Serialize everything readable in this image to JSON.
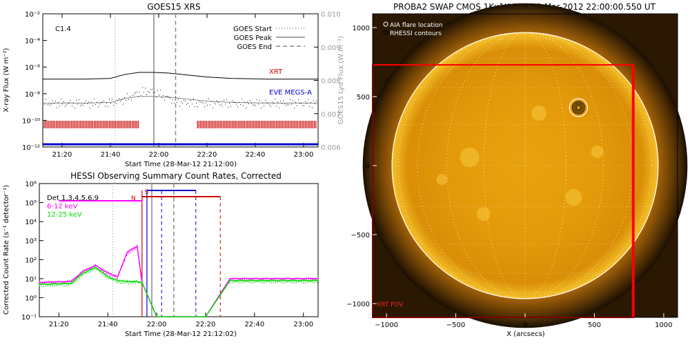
{
  "chart_data": [
    {
      "type": "line",
      "title": "GOES15 XRS",
      "xlabel": "Start Time (28-Mar-12 21:12:00)",
      "ylabel": "X-ray Flux (W m⁻²)",
      "ylabel_right": "GOES15 Lyα Flux (W m⁻²)",
      "x_ticks": [
        "21:20",
        "21:40",
        "22:00",
        "22:20",
        "22:40",
        "23:00"
      ],
      "y_ticks": [
        "10⁻²",
        "10⁻⁴",
        "10⁻⁶",
        "10⁻⁸",
        "10⁻¹⁰",
        "10⁻¹²"
      ],
      "y_ticks_right": [
        "0.010",
        "0.009",
        "0.008",
        "0.007",
        "0.006"
      ],
      "ylim_log10": [
        -12,
        -2
      ],
      "annotation": "C1.4",
      "legend": [
        "GOES Start",
        "GOES Peak",
        "GOES End"
      ],
      "legend_position": "top-right",
      "event_times": {
        "start": "21:42",
        "peak": "21:58",
        "end": "22:07"
      },
      "series": [
        {
          "name": "XRT",
          "color": "#cc0000",
          "x": [
            "21:12",
            "21:30",
            "21:40",
            "21:46",
            "21:52",
            "21:58",
            "22:04",
            "22:12",
            "22:20",
            "22:30",
            "22:45",
            "23:06"
          ],
          "y_log10": [
            -6.9,
            -6.9,
            -6.85,
            -6.55,
            -6.4,
            -6.4,
            -6.45,
            -6.6,
            -6.75,
            -6.85,
            -6.9,
            -6.9
          ]
        },
        {
          "name": "EVE MEGS-A",
          "color": "#0000cc",
          "x": [
            "21:12",
            "23:06"
          ],
          "y_log10": [
            -11.8,
            -11.8
          ]
        }
      ]
    },
    {
      "type": "line",
      "title": "HESSI Observing Summary Count Rates, Corrected",
      "xlabel": "Start Time (28-Mar-12 21:12:02)",
      "ylabel": "Corrected Count Rate (s⁻¹ detector⁻¹)",
      "x_ticks": [
        "21:20",
        "21:40",
        "22:00",
        "22:20",
        "22:40",
        "23:00"
      ],
      "y_ticks": [
        "10⁶",
        "10⁵",
        "10⁴",
        "10³",
        "10²",
        "10¹",
        "10⁰",
        "10⁻¹"
      ],
      "ylim_log10": [
        -1,
        6
      ],
      "legend_title": "Det 1,3,4,5,6,9",
      "legend_position": "top-left",
      "markers": [
        "N",
        "S"
      ],
      "series": [
        {
          "name": "6-12 keV",
          "color": "#ff00ff",
          "x": [
            "21:12",
            "21:25",
            "21:30",
            "21:35",
            "21:40",
            "21:44",
            "21:48",
            "21:52",
            "21:54",
            "22:00",
            "22:20",
            "22:30",
            "23:06"
          ],
          "y_log10": [
            0.8,
            0.85,
            1.4,
            1.7,
            1.3,
            1.1,
            2.4,
            2.7,
            0.8,
            -1,
            -1,
            1.0,
            1.0
          ]
        },
        {
          "name": "12-25 keV",
          "color": "#00dd00",
          "x": [
            "21:12",
            "21:25",
            "21:30",
            "21:35",
            "21:40",
            "21:44",
            "21:48",
            "21:52",
            "21:54",
            "22:00",
            "22:20",
            "22:30",
            "23:06"
          ],
          "y_log10": [
            0.7,
            0.75,
            1.3,
            1.6,
            1.1,
            0.9,
            0.85,
            0.85,
            0.8,
            -1,
            -1,
            0.9,
            0.9
          ]
        }
      ]
    },
    {
      "type": "scatter",
      "title": "PROBA2 SWAP CMOS 1Kx1K 174 28-Mar-2012 22:00:00.550 UT",
      "xlabel": "X (arcsecs)",
      "ylabel": "",
      "x_ticks": [
        "−1000",
        "−500",
        "0",
        "500",
        "1000"
      ],
      "y_ticks": [
        "1000",
        "500",
        "0",
        "−500",
        "−1000"
      ],
      "xlim": [
        -1100,
        1100
      ],
      "ylim": [
        -1100,
        1100
      ],
      "legend": [
        "AIA flare location",
        "RHESSI contours"
      ],
      "legend_position": "top-left",
      "fov_label": "XRT FOV",
      "fov_box": {
        "x": [
          -1100,
          780
        ],
        "y": [
          -1100,
          730
        ]
      },
      "flare_location": {
        "x": 385,
        "y": 420
      }
    }
  ]
}
